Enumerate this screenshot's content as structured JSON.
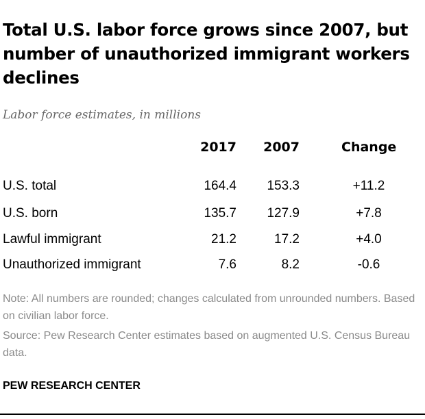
{
  "chart_data": {
    "type": "table",
    "title": "Total U.S. labor force grows since 2007, but number of unauthorized immigrant workers declines",
    "subtitle": "Labor force estimates, in millions",
    "columns": [
      "2017",
      "2007",
      "Change"
    ],
    "rows": [
      {
        "label": "U.S. total",
        "values": [
          "164.4",
          "153.3",
          "+11.2"
        ]
      },
      {
        "label": "U.S. born",
        "values": [
          "135.7",
          "127.9",
          "+7.8"
        ]
      },
      {
        "label": "Lawful immigrant",
        "values": [
          "21.2",
          "17.2",
          "+4.0"
        ]
      },
      {
        "label": "Unauthorized immigrant",
        "values": [
          "7.6",
          "8.2",
          "-0.6"
        ]
      }
    ],
    "note": "Note: All numbers are rounded; changes calculated from unrounded numbers. Based on civilian labor force.",
    "source": "Source: Pew Research Center estimates based on augmented U.S. Census Bureau data.",
    "brand": "PEW RESEARCH CENTER"
  }
}
